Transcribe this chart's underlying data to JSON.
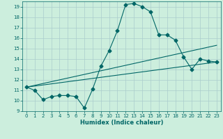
{
  "title": "",
  "xlabel": "Humidex (Indice chaleur)",
  "xlim": [
    -0.5,
    23.5
  ],
  "ylim": [
    9,
    19.5
  ],
  "yticks": [
    9,
    10,
    11,
    12,
    13,
    14,
    15,
    16,
    17,
    18,
    19
  ],
  "xticks": [
    0,
    1,
    2,
    3,
    4,
    5,
    6,
    7,
    8,
    9,
    10,
    11,
    12,
    13,
    14,
    15,
    16,
    17,
    18,
    19,
    20,
    21,
    22,
    23
  ],
  "bg_color": "#cceedd",
  "line_color": "#006666",
  "grid_color": "#aacccc",
  "main_line": {
    "x": [
      0,
      1,
      2,
      3,
      4,
      5,
      6,
      7,
      8,
      9,
      10,
      11,
      12,
      13,
      14,
      15,
      16,
      17,
      18,
      19,
      20,
      21,
      22,
      23
    ],
    "y": [
      11.3,
      11.0,
      10.1,
      10.4,
      10.5,
      10.5,
      10.4,
      9.3,
      11.1,
      13.3,
      14.8,
      16.7,
      19.2,
      19.3,
      19.0,
      18.5,
      16.3,
      16.3,
      15.8,
      14.2,
      13.0,
      14.0,
      13.8,
      13.7
    ]
  },
  "trend_lines": [
    {
      "x": [
        0,
        23
      ],
      "y": [
        11.3,
        13.7
      ]
    },
    {
      "x": [
        0,
        23
      ],
      "y": [
        11.3,
        15.3
      ]
    }
  ]
}
